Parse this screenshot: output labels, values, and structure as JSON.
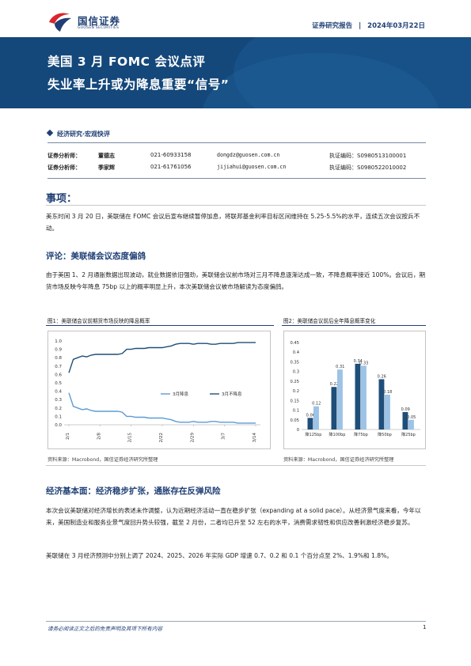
{
  "header": {
    "logo_cn": "国信证券",
    "logo_en": "GUOSEN SECURITIES",
    "report_type": "证券研究报告",
    "separator": "|",
    "date": "2024年03月22日"
  },
  "title": {
    "line1": "美国 3 月 FOMC 会议点评",
    "line2": "失业率上升或为降息重要“信号”"
  },
  "section_tag": "经济研究·宏观快评",
  "analysts": [
    {
      "role": "证券分析师：",
      "name": "董德志",
      "phone": "021-60933158",
      "email": "dongdz@guosen.com.cn",
      "license": "执证编码：S0980513100001"
    },
    {
      "role": "证券分析师：",
      "name": "季家辉",
      "phone": "021-61761056",
      "email": "jijiahui@guosen.com.cn",
      "license": "执证编码：S0980522010002"
    }
  ],
  "events": {
    "heading": "事项：",
    "text": "美东时间 3 月 20 日，美联储在 FOMC 会议后宣布继续暂停加息，将联邦基金利率目标区间维持在 5.25-5.5%的水平，连续五次会议按兵不动。"
  },
  "commentary": {
    "heading": "评论：美联储会议态度偏鸽",
    "text": "由于美国 1、2 月通胀数据出现波动，就业数据依旧强劲，美联储会议前市场对三月不降息逐渐达成一致，不降息概率接近 100%。会议后，期货市场反映今年降息 75bp 以上的概率明显上升，本次美联储会议被市场解读为态度偏鸽。"
  },
  "figure1": {
    "title": "图1：美联储会议前期货市场反映的降息概率",
    "source": "资料来源：Macrobond，国信证券经济研究所整理"
  },
  "figure2": {
    "title": "图2：美联储会议前后全年降息概率变化",
    "source": "资料来源：Macrobond，国信证券经济研究所整理"
  },
  "chart_data": [
    {
      "type": "line",
      "title": "",
      "x_ticks": [
        "2/1",
        "2/8",
        "2/15",
        "2/22",
        "2/29",
        "3/7",
        "3/14"
      ],
      "ylim": [
        0,
        1
      ],
      "y_ticks": [
        "0.0",
        "0.1",
        "0.2",
        "0.3",
        "0.4",
        "0.5",
        "0.6",
        "0.7",
        "0.8",
        "0.9",
        "1.0"
      ],
      "legend_position": "bottom-right",
      "series": [
        {
          "name": "3月降息",
          "color": "#5b9bd5",
          "values": [
            0.38,
            0.22,
            0.2,
            0.18,
            0.19,
            0.17,
            0.16,
            0.16,
            0.16,
            0.16,
            0.16,
            0.16,
            0.15,
            0.1,
            0.1,
            0.09,
            0.09,
            0.09,
            0.08,
            0.08,
            0.08,
            0.08,
            0.07,
            0.06,
            0.04,
            0.03,
            0.03,
            0.03,
            0.04,
            0.03,
            0.03,
            0.03,
            0.04,
            0.04,
            0.03,
            0.03,
            0.03,
            0.03,
            0.02,
            0.02,
            0.02,
            0.02,
            0.02
          ]
        },
        {
          "name": "3月不降息",
          "color": "#1f4e79",
          "values": [
            0.62,
            0.78,
            0.8,
            0.82,
            0.81,
            0.83,
            0.84,
            0.84,
            0.84,
            0.84,
            0.84,
            0.84,
            0.85,
            0.9,
            0.9,
            0.91,
            0.91,
            0.91,
            0.92,
            0.92,
            0.92,
            0.92,
            0.93,
            0.94,
            0.96,
            0.97,
            0.97,
            0.97,
            0.96,
            0.97,
            0.97,
            0.97,
            0.96,
            0.96,
            0.97,
            0.97,
            0.97,
            0.97,
            0.98,
            0.98,
            0.98,
            0.98,
            0.98
          ]
        }
      ]
    },
    {
      "type": "bar",
      "title": "",
      "categories": [
        "降125bp",
        "降100bp",
        "降75bp",
        "降50bp",
        "降25bp"
      ],
      "ylim": [
        0,
        0.45
      ],
      "y_ticks": [
        "0",
        "0.05",
        "0.1",
        "0.15",
        "0.2",
        "0.25",
        "0.3",
        "0.35",
        "0.4",
        "0.45"
      ],
      "series": [
        {
          "color": "#1f4e79",
          "values": [
            0.06,
            0.22,
            0.34,
            0.26,
            0.09
          ],
          "labels": [
            "0.06",
            "0.22",
            "0.34",
            "0.26",
            "0.09"
          ]
        },
        {
          "color": "#9dc3e6",
          "values": [
            0.12,
            0.31,
            0.33,
            0.18,
            0.05
          ],
          "labels": [
            "0.12",
            "0.31",
            "0.33",
            "0.18",
            "0.05"
          ]
        }
      ]
    }
  ],
  "fundamentals": {
    "heading": "经济基本面：经济稳步扩张，通胀存在反弹风险",
    "text1": "本次会议美联储对经济增长的表述未作调整，认为近期经济活动一直在稳步扩张（expanding at a solid pace）。从经济景气度来看，今年以来，美国制造业和服务业景气度回升势头较强，截至 2 月份，二者均已升至 52 左右的水平，消费需求韧性和供应改善刺激经济稳步复苏。",
    "text2": "美联储在 3 月经济预测中分别上调了 2024、2025、2026 年实际 GDP 增速 0.7、0.2 和 0.1 个百分点至 2%、1.9%和 1.8%。"
  },
  "footer": {
    "note": "请务必阅读正文之后的免责声明及其项下所有内容",
    "page": "1"
  }
}
